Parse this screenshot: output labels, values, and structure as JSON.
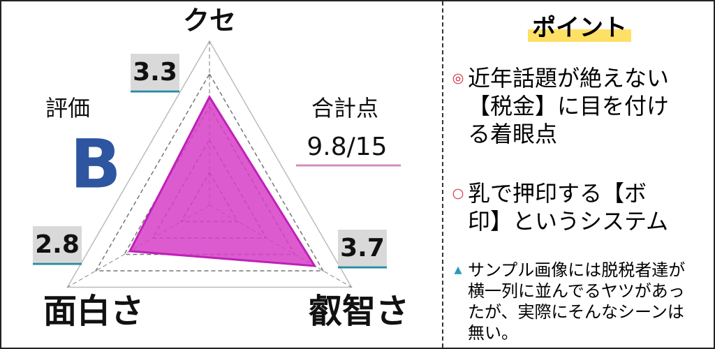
{
  "chart_data": {
    "type": "radar",
    "categories": [
      "クセ",
      "叡智さ",
      "面白さ"
    ],
    "values": [
      3.3,
      3.7,
      2.8
    ],
    "rlim": [
      0,
      5
    ],
    "rticks": [
      1,
      2,
      3,
      4,
      5
    ],
    "color": "#d63fc8"
  },
  "rating": {
    "label": "評価",
    "grade": "B"
  },
  "total": {
    "label": "合計点",
    "value": "9.8/15"
  },
  "points": {
    "title": "ポイント",
    "items": [
      {
        "marker": "◎",
        "text": "近年話題が絶えない【税金】に目を付ける着眼点"
      },
      {
        "marker": "○",
        "text": "乳で押印する【ボ印】というシステム"
      },
      {
        "marker": "▲",
        "text": "サンプル画像には脱税者達が横一列に並んでるヤツがあったが、実際にそんなシーンは無い。"
      }
    ]
  }
}
